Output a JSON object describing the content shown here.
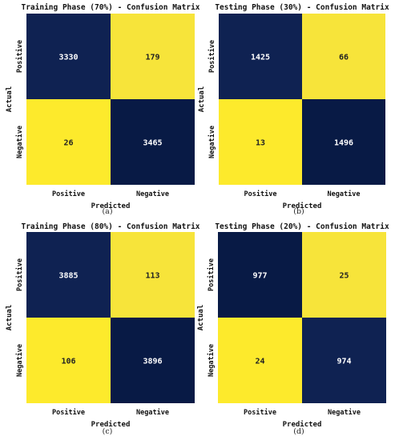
{
  "colors": {
    "dark": "#0f2252",
    "dark_deep": "#081a45",
    "light": "#f7e43a",
    "light_bright": "#fdea2c"
  },
  "chart_data": [
    {
      "type": "heatmap",
      "title": "Training Phase (70%) - Confusion Matrix",
      "xlabel": "Predicted",
      "ylabel": "Actual",
      "x_categories": [
        "Positive",
        "Negative"
      ],
      "y_categories": [
        "Positive",
        "Negative"
      ],
      "values": [
        [
          3330,
          179
        ],
        [
          26,
          3465
        ]
      ],
      "caption": "(a)"
    },
    {
      "type": "heatmap",
      "title": "Testing Phase (30%) - Confusion Matrix",
      "xlabel": "Predicted",
      "ylabel": "Actual",
      "x_categories": [
        "Positive",
        "Negative"
      ],
      "y_categories": [
        "Positive",
        "Negative"
      ],
      "values": [
        [
          1425,
          66
        ],
        [
          13,
          1496
        ]
      ],
      "caption": "(b)"
    },
    {
      "type": "heatmap",
      "title": "Training Phase (80%) - Confusion Matrix",
      "xlabel": "Predicted",
      "ylabel": "Actual",
      "x_categories": [
        "Positive",
        "Negative"
      ],
      "y_categories": [
        "Positive",
        "Negative"
      ],
      "values": [
        [
          3885,
          113
        ],
        [
          106,
          3896
        ]
      ],
      "caption": "(c)"
    },
    {
      "type": "heatmap",
      "title": "Testing Phase (20%) - Confusion Matrix",
      "xlabel": "Predicted",
      "ylabel": "Actual",
      "x_categories": [
        "Positive",
        "Negative"
      ],
      "y_categories": [
        "Positive",
        "Negative"
      ],
      "values": [
        [
          977,
          25
        ],
        [
          24,
          974
        ]
      ],
      "caption": "(d)"
    }
  ]
}
